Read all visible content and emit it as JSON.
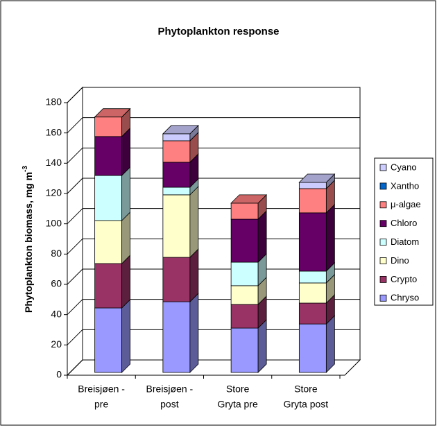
{
  "chart_data": {
    "type": "bar3d_stacked",
    "title": "Phytoplankton response",
    "y_label": "Phytoplankton biomass, mg m",
    "y_label_superscript": "-3",
    "categories": [
      [
        "Breisjøen -",
        "pre"
      ],
      [
        "Breisjøen -",
        "post"
      ],
      [
        "Store",
        "Gryta pre"
      ],
      [
        "Store",
        "Gryta post"
      ]
    ],
    "series": [
      {
        "name": "Chryso",
        "color": "#9999FF",
        "values": [
          42.6,
          46.7,
          29.3,
          32.0
        ]
      },
      {
        "name": "Crypto",
        "color": "#993366",
        "values": [
          29.3,
          29.3,
          15.6,
          13.8
        ]
      },
      {
        "name": "Dino",
        "color": "#FFFFCC",
        "values": [
          28.4,
          41.3,
          12.4,
          13.3
        ]
      },
      {
        "name": "Diatom",
        "color": "#CCFFFF",
        "values": [
          29.8,
          5.0,
          15.5,
          7.8
        ]
      },
      {
        "name": "Chloro",
        "color": "#660066",
        "values": [
          25.7,
          16.5,
          28.4,
          38.5
        ]
      },
      {
        "name": "μ-algae",
        "color": "#FF8080",
        "values": [
          12.9,
          14.2,
          10.6,
          16.0
        ]
      },
      {
        "name": "Xantho",
        "color": "#0066CC",
        "values": [
          0,
          0,
          0,
          0
        ]
      },
      {
        "name": "Cyano",
        "color": "#CCCCFF",
        "values": [
          0,
          4.6,
          0,
          4.1
        ]
      }
    ],
    "ylim": [
      0,
      180
    ],
    "yticks": [
      0,
      20,
      40,
      60,
      80,
      100,
      120,
      140,
      160,
      180
    ],
    "grid": true,
    "legend": "right"
  }
}
